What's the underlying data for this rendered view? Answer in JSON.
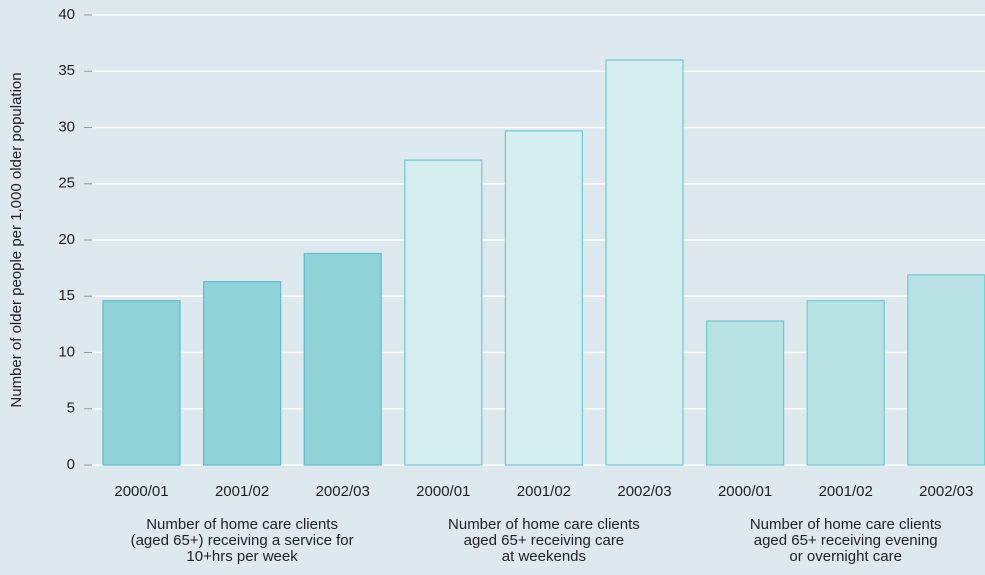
{
  "chart_data": {
    "type": "bar",
    "ylabel": "Number of older people per 1,000 older population",
    "ylim": [
      0,
      40
    ],
    "yticks": [
      0,
      5,
      10,
      15,
      20,
      25,
      30,
      35,
      40
    ],
    "grid": true,
    "groups": [
      {
        "label_lines": [
          "Number of home care clients",
          "(aged 65+) receiving a service for",
          "10+hrs per week"
        ],
        "color": "#8fd3d8",
        "edge_color": "#5bbfc8",
        "categories": [
          "2000/01",
          "2001/02",
          "2002/03"
        ],
        "values": [
          14.6,
          16.3,
          18.8
        ]
      },
      {
        "label_lines": [
          "Number of home care clients",
          "aged 65+ receiving care",
          "at weekends"
        ],
        "color": "#d5eef0",
        "edge_color": "#6ccbd0",
        "categories": [
          "2000/01",
          "2001/02",
          "2002/03"
        ],
        "values": [
          27.1,
          29.7,
          36.0
        ]
      },
      {
        "label_lines": [
          "Number of home care clients",
          "aged 65+ receiving evening",
          "or overnight care"
        ],
        "color": "#b8e2e4",
        "edge_color": "#6ccbd0",
        "categories": [
          "2000/01",
          "2001/02",
          "2002/03"
        ],
        "values": [
          12.8,
          14.6,
          16.9
        ]
      }
    ]
  }
}
